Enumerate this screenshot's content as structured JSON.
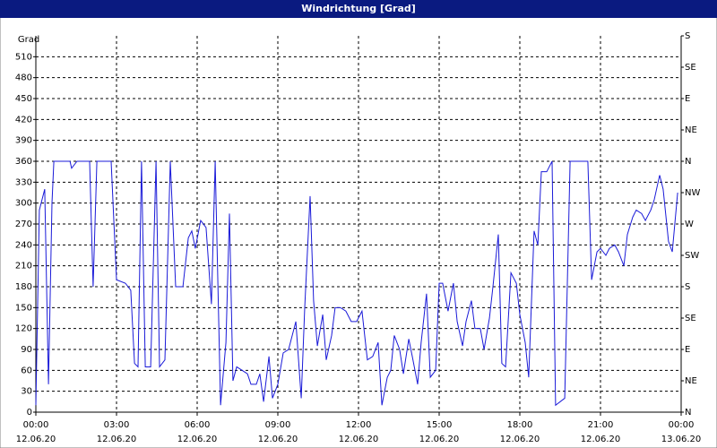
{
  "chart_data": {
    "type": "line",
    "title": "Windrichtung [Grad]",
    "ylabel": "Grad",
    "xlim": [
      0,
      24
    ],
    "ylim": [
      0,
      540
    ],
    "y2lim": [
      0,
      540
    ],
    "grid": true,
    "xticks": [
      {
        "value": 0,
        "label": "00:00",
        "date": "12.06.20"
      },
      {
        "value": 3,
        "label": "03:00",
        "date": "12.06.20"
      },
      {
        "value": 6,
        "label": "06:00",
        "date": "12.06.20"
      },
      {
        "value": 9,
        "label": "09:00",
        "date": "12.06.20"
      },
      {
        "value": 12,
        "label": "12:00",
        "date": "12.06.20"
      },
      {
        "value": 15,
        "label": "15:00",
        "date": "12.06.20"
      },
      {
        "value": 18,
        "label": "18:00",
        "date": "12.06.20"
      },
      {
        "value": 21,
        "label": "21:00",
        "date": "12.06.20"
      },
      {
        "value": 24,
        "label": "00:00",
        "date": "13.06.20"
      }
    ],
    "yticks": [
      0,
      30,
      60,
      90,
      120,
      150,
      180,
      210,
      240,
      270,
      300,
      330,
      360,
      390,
      420,
      450,
      480,
      510
    ],
    "y2ticks": [
      {
        "value": 0,
        "label": "N"
      },
      {
        "value": 45,
        "label": "NE"
      },
      {
        "value": 90,
        "label": "E"
      },
      {
        "value": 135,
        "label": "SE"
      },
      {
        "value": 180,
        "label": "S"
      },
      {
        "value": 225,
        "label": "SW"
      },
      {
        "value": 270,
        "label": "W"
      },
      {
        "value": 315,
        "label": "NW"
      },
      {
        "value": 360,
        "label": "N"
      },
      {
        "value": 405,
        "label": "NE"
      },
      {
        "value": 450,
        "label": "E"
      },
      {
        "value": 495,
        "label": "SE"
      },
      {
        "value": 540,
        "label": "S"
      }
    ],
    "x": [
      0,
      0.13,
      0.33,
      0.47,
      0.6,
      0.67,
      1.27,
      1.33,
      1.53,
      2,
      2.13,
      2.27,
      2.8,
      3,
      3.33,
      3.53,
      3.67,
      3.8,
      3.93,
      4.07,
      4.27,
      4.47,
      4.6,
      4.8,
      5,
      5.2,
      5.47,
      5.67,
      5.8,
      5.93,
      6.13,
      6.33,
      6.53,
      6.67,
      6.87,
      7.07,
      7.2,
      7.33,
      7.47,
      7.67,
      7.87,
      8,
      8.2,
      8.33,
      8.47,
      8.67,
      8.8,
      9,
      9.2,
      9.4,
      9.67,
      9.87,
      10,
      10.2,
      10.33,
      10.47,
      10.67,
      10.8,
      11,
      11.13,
      11.33,
      11.53,
      11.73,
      11.93,
      12.13,
      12.33,
      12.53,
      12.73,
      12.87,
      13.07,
      13.2,
      13.33,
      13.53,
      13.67,
      13.87,
      14,
      14.2,
      14.33,
      14.53,
      14.67,
      14.87,
      15,
      15.13,
      15.33,
      15.53,
      15.67,
      15.87,
      16,
      16.2,
      16.33,
      16.53,
      16.67,
      16.87,
      17,
      17.2,
      17.33,
      17.47,
      17.67,
      17.87,
      18,
      18.2,
      18.33,
      18.53,
      18.67,
      18.8,
      19,
      19.2,
      19.33,
      19.67,
      19.87,
      20.53,
      20.67,
      20.87,
      21,
      21.2,
      21.33,
      21.53,
      21.67,
      21.87,
      22,
      22.2,
      22.33,
      22.53,
      22.67,
      22.87,
      23,
      23.2,
      23.33,
      23.53,
      23.67,
      23.87
    ],
    "series": [
      {
        "color": "#1a1ad8",
        "values": [
          10,
          290,
          320,
          40,
          300,
          360,
          360,
          350,
          360,
          360,
          180,
          360,
          360,
          190,
          185,
          175,
          70,
          65,
          360,
          65,
          65,
          360,
          65,
          75,
          360,
          180,
          180,
          250,
          260,
          235,
          275,
          265,
          155,
          360,
          10,
          100,
          285,
          45,
          65,
          60,
          55,
          40,
          40,
          55,
          15,
          80,
          20,
          40,
          85,
          90,
          130,
          20,
          150,
          310,
          160,
          95,
          140,
          75,
          110,
          150,
          150,
          145,
          130,
          130,
          145,
          75,
          80,
          100,
          10,
          50,
          60,
          110,
          90,
          55,
          105,
          80,
          40,
          100,
          170,
          50,
          60,
          185,
          185,
          145,
          185,
          130,
          95,
          130,
          160,
          120,
          120,
          90,
          135,
          180,
          255,
          70,
          65,
          200,
          185,
          140,
          100,
          50,
          260,
          240,
          345,
          345,
          360,
          10,
          20,
          360,
          360,
          190,
          230,
          235,
          225,
          235,
          240,
          230,
          210,
          255,
          280,
          290,
          285,
          275,
          290,
          305,
          340,
          320,
          245,
          230,
          315
        ]
      }
    ]
  }
}
